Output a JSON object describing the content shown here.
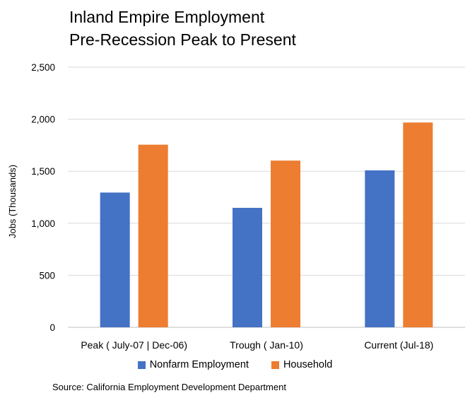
{
  "chart_data": {
    "type": "bar",
    "title": [
      "Inland Empire Employment",
      "Pre-Recession Peak to Present"
    ],
    "ylabel": "Jobs (Thousands)",
    "xlabel": "",
    "ylim": [
      0,
      2500
    ],
    "yticks": [
      0,
      500,
      1000,
      1500,
      2000,
      2500
    ],
    "ytick_labels": [
      "0",
      "500",
      "1,000",
      "1,500",
      "2,000",
      "2,500"
    ],
    "grid": true,
    "legend": "bottom",
    "categories": [
      "Peak ( July-07 | Dec-06)",
      "Trough ( Jan-10)",
      "Current (Jul-18)"
    ],
    "series": [
      {
        "name": "Nonfarm Employment",
        "color": "#4472c4",
        "values": [
          1295,
          1148,
          1508
        ]
      },
      {
        "name": "Household",
        "color": "#ed7d31",
        "values": [
          1755,
          1602,
          1968
        ]
      }
    ]
  },
  "footer": {
    "source": "Source: California Employment Development Department"
  }
}
